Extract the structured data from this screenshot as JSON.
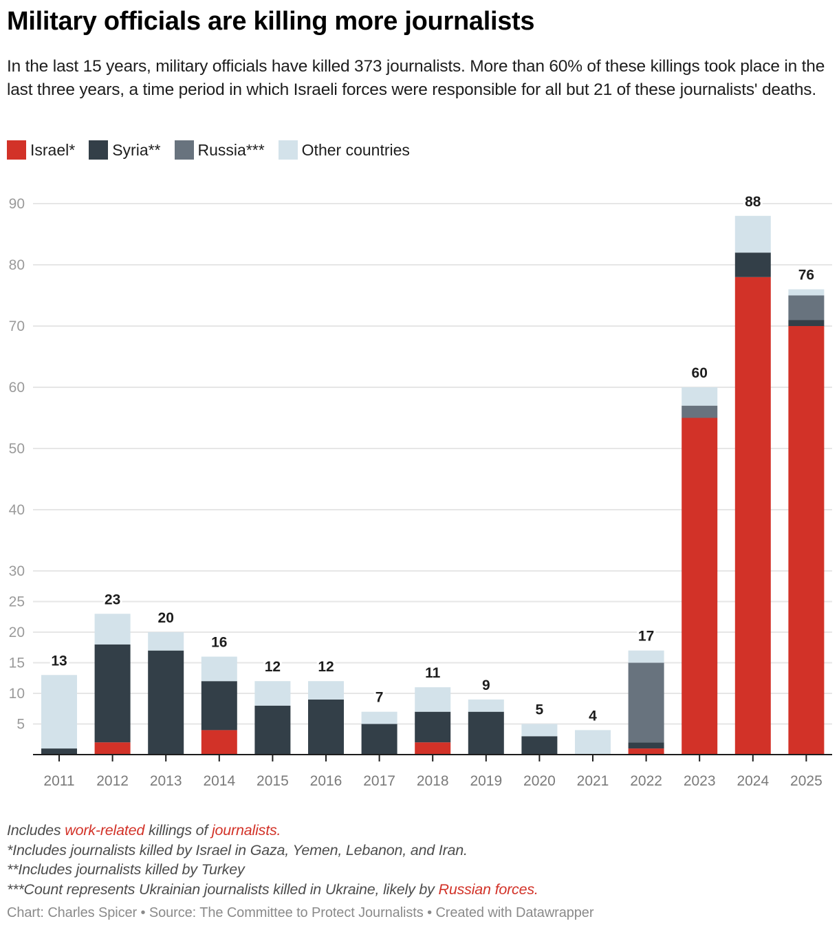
{
  "header": {
    "title": "Military officials are killing more journalists",
    "subtitle": "In the last 15 years, military officials have killed 373 journalists. More than 60% of these killings took place in the last three years, a time period in which Israeli forces were responsible for all but 21 of these journalists' deaths."
  },
  "legend": [
    {
      "label": "Israel*",
      "color": "#d23228"
    },
    {
      "label": "Syria**",
      "color": "#333f48"
    },
    {
      "label": "Russia***",
      "color": "#68737e"
    },
    {
      "label": "Other countries",
      "color": "#d3e2ea"
    }
  ],
  "chart_data": {
    "type": "bar",
    "stacked": true,
    "title": "Military officials are killing more journalists",
    "xlabel": "",
    "ylabel": "",
    "categories": [
      "2011",
      "2012",
      "2013",
      "2014",
      "2015",
      "2016",
      "2017",
      "2018",
      "2019",
      "2020",
      "2021",
      "2022",
      "2023",
      "2024",
      "2025"
    ],
    "series": [
      {
        "name": "Israel*",
        "color": "#d23228",
        "values": [
          0,
          2,
          0,
          4,
          0,
          0,
          0,
          2,
          0,
          0,
          0,
          1,
          55,
          78,
          70
        ]
      },
      {
        "name": "Syria**",
        "color": "#333f48",
        "values": [
          1,
          16,
          17,
          8,
          8,
          9,
          5,
          5,
          7,
          3,
          0,
          1,
          0,
          4,
          1
        ]
      },
      {
        "name": "Russia***",
        "color": "#68737e",
        "values": [
          0,
          0,
          0,
          0,
          0,
          0,
          0,
          0,
          0,
          0,
          0,
          13,
          2,
          0,
          4
        ]
      },
      {
        "name": "Other countries",
        "color": "#d3e2ea",
        "values": [
          12,
          5,
          3,
          4,
          4,
          3,
          2,
          4,
          2,
          2,
          4,
          2,
          3,
          6,
          1
        ]
      }
    ],
    "totals": [
      13,
      23,
      20,
      16,
      12,
      12,
      7,
      11,
      9,
      5,
      4,
      17,
      60,
      88,
      76
    ],
    "yticks": [
      5,
      10,
      15,
      20,
      25,
      30,
      40,
      50,
      60,
      70,
      80,
      90
    ],
    "ylim": [
      0,
      90
    ],
    "grid": true,
    "legend_position": "top-left"
  },
  "footer": {
    "notes": [
      {
        "parts": [
          {
            "text": "Includes "
          },
          {
            "text": "work-related",
            "hl": true
          },
          {
            "text": " killings of "
          },
          {
            "text": "journalists.",
            "hl": true
          }
        ]
      },
      {
        "parts": [
          {
            "text": "*Includes journalists killed by Israel in Gaza, Yemen, Lebanon, and Iran."
          }
        ]
      },
      {
        "parts": [
          {
            "text": "**Includes journalists killed by Turkey"
          }
        ]
      },
      {
        "parts": [
          {
            "text": "***Count represents Ukrainian journalists killed in Ukraine, likely by "
          },
          {
            "text": "Russian forces.",
            "hl": true
          }
        ]
      }
    ],
    "credit": "Chart: Charles Spicer • Source: The Committee to Protect Journalists • Created with Datawrapper"
  }
}
